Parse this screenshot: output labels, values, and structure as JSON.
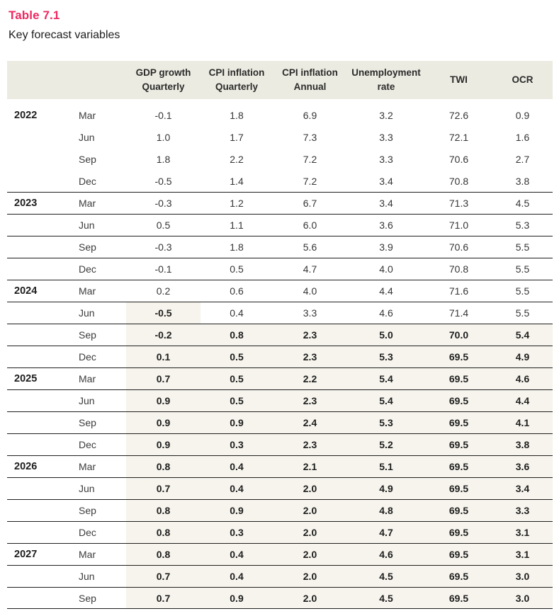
{
  "page": {
    "title": "Table 7.1",
    "subtitle": "Key forecast variables"
  },
  "colors": {
    "title_accent": "#ee2a62",
    "header_bg": "#ecebe1",
    "forecast_bg": "#f6f4ec",
    "rule": "#1f1f1f",
    "text": "#2e2e2e"
  },
  "table": {
    "headers": [
      {
        "line1": "GDP growth",
        "line2": "Quarterly"
      },
      {
        "line1": "CPI inflation",
        "line2": "Quarterly"
      },
      {
        "line1": "CPI inflation",
        "line2": "Annual"
      },
      {
        "line1": "Unemployment",
        "line2": "rate"
      },
      {
        "line1": "TWI",
        "line2": ""
      },
      {
        "line1": "OCR",
        "line2": ""
      }
    ],
    "column_keys": [
      "gdp-growth-quarterly",
      "cpi-inflation-quarterly",
      "cpi-inflation-annual",
      "unemployment-rate",
      "twi",
      "ocr"
    ],
    "groups": [
      {
        "year": "2022",
        "rows": [
          {
            "month": "Mar",
            "values": [
              "-0.1",
              "1.8",
              "6.9",
              "3.2",
              "72.6",
              "0.9"
            ],
            "forecast": [
              0,
              0,
              0,
              0,
              0,
              0
            ]
          },
          {
            "month": "Jun",
            "values": [
              "1.0",
              "1.7",
              "7.3",
              "3.3",
              "72.1",
              "1.6"
            ],
            "forecast": [
              0,
              0,
              0,
              0,
              0,
              0
            ]
          },
          {
            "month": "Sep",
            "values": [
              "1.8",
              "2.2",
              "7.2",
              "3.3",
              "70.6",
              "2.7"
            ],
            "forecast": [
              0,
              0,
              0,
              0,
              0,
              0
            ]
          },
          {
            "month": "Dec",
            "values": [
              "-0.5",
              "1.4",
              "7.2",
              "3.4",
              "70.8",
              "3.8"
            ],
            "forecast": [
              0,
              0,
              0,
              0,
              0,
              0
            ]
          }
        ]
      },
      {
        "year": "2023",
        "rows": [
          {
            "month": "Mar",
            "values": [
              "-0.3",
              "1.2",
              "6.7",
              "3.4",
              "71.3",
              "4.5"
            ],
            "forecast": [
              0,
              0,
              0,
              0,
              0,
              0
            ]
          },
          {
            "month": "Jun",
            "values": [
              "0.5",
              "1.1",
              "6.0",
              "3.6",
              "71.0",
              "5.3"
            ],
            "forecast": [
              0,
              0,
              0,
              0,
              0,
              0
            ]
          },
          {
            "month": "Sep",
            "values": [
              "-0.3",
              "1.8",
              "5.6",
              "3.9",
              "70.6",
              "5.5"
            ],
            "forecast": [
              0,
              0,
              0,
              0,
              0,
              0
            ]
          },
          {
            "month": "Dec",
            "values": [
              "-0.1",
              "0.5",
              "4.7",
              "4.0",
              "70.8",
              "5.5"
            ],
            "forecast": [
              0,
              0,
              0,
              0,
              0,
              0
            ]
          }
        ]
      },
      {
        "year": "2024",
        "rows": [
          {
            "month": "Mar",
            "values": [
              "0.2",
              "0.6",
              "4.0",
              "4.4",
              "71.6",
              "5.5"
            ],
            "forecast": [
              0,
              0,
              0,
              0,
              0,
              0
            ]
          },
          {
            "month": "Jun",
            "values": [
              "-0.5",
              "0.4",
              "3.3",
              "4.6",
              "71.4",
              "5.5"
            ],
            "forecast": [
              1,
              0,
              0,
              0,
              0,
              0
            ]
          },
          {
            "month": "Sep",
            "values": [
              "-0.2",
              "0.8",
              "2.3",
              "5.0",
              "70.0",
              "5.4"
            ],
            "forecast": [
              1,
              1,
              1,
              1,
              1,
              1
            ]
          },
          {
            "month": "Dec",
            "values": [
              "0.1",
              "0.5",
              "2.3",
              "5.3",
              "69.5",
              "4.9"
            ],
            "forecast": [
              1,
              1,
              1,
              1,
              1,
              1
            ]
          }
        ]
      },
      {
        "year": "2025",
        "rows": [
          {
            "month": "Mar",
            "values": [
              "0.7",
              "0.5",
              "2.2",
              "5.4",
              "69.5",
              "4.6"
            ],
            "forecast": [
              1,
              1,
              1,
              1,
              1,
              1
            ]
          },
          {
            "month": "Jun",
            "values": [
              "0.9",
              "0.5",
              "2.3",
              "5.4",
              "69.5",
              "4.4"
            ],
            "forecast": [
              1,
              1,
              1,
              1,
              1,
              1
            ]
          },
          {
            "month": "Sep",
            "values": [
              "0.9",
              "0.9",
              "2.4",
              "5.3",
              "69.5",
              "4.1"
            ],
            "forecast": [
              1,
              1,
              1,
              1,
              1,
              1
            ]
          },
          {
            "month": "Dec",
            "values": [
              "0.9",
              "0.3",
              "2.3",
              "5.2",
              "69.5",
              "3.8"
            ],
            "forecast": [
              1,
              1,
              1,
              1,
              1,
              1
            ]
          }
        ]
      },
      {
        "year": "2026",
        "rows": [
          {
            "month": "Mar",
            "values": [
              "0.8",
              "0.4",
              "2.1",
              "5.1",
              "69.5",
              "3.6"
            ],
            "forecast": [
              1,
              1,
              1,
              1,
              1,
              1
            ]
          },
          {
            "month": "Jun",
            "values": [
              "0.7",
              "0.4",
              "2.0",
              "4.9",
              "69.5",
              "3.4"
            ],
            "forecast": [
              1,
              1,
              1,
              1,
              1,
              1
            ]
          },
          {
            "month": "Sep",
            "values": [
              "0.8",
              "0.9",
              "2.0",
              "4.8",
              "69.5",
              "3.3"
            ],
            "forecast": [
              1,
              1,
              1,
              1,
              1,
              1
            ]
          },
          {
            "month": "Dec",
            "values": [
              "0.8",
              "0.3",
              "2.0",
              "4.7",
              "69.5",
              "3.1"
            ],
            "forecast": [
              1,
              1,
              1,
              1,
              1,
              1
            ]
          }
        ]
      },
      {
        "year": "2027",
        "rows": [
          {
            "month": "Mar",
            "values": [
              "0.8",
              "0.4",
              "2.0",
              "4.6",
              "69.5",
              "3.1"
            ],
            "forecast": [
              1,
              1,
              1,
              1,
              1,
              1
            ]
          },
          {
            "month": "Jun",
            "values": [
              "0.7",
              "0.4",
              "2.0",
              "4.5",
              "69.5",
              "3.0"
            ],
            "forecast": [
              1,
              1,
              1,
              1,
              1,
              1
            ]
          },
          {
            "month": "Sep",
            "values": [
              "0.7",
              "0.9",
              "2.0",
              "4.5",
              "69.5",
              "3.0"
            ],
            "forecast": [
              1,
              1,
              1,
              1,
              1,
              1
            ]
          }
        ]
      }
    ]
  }
}
